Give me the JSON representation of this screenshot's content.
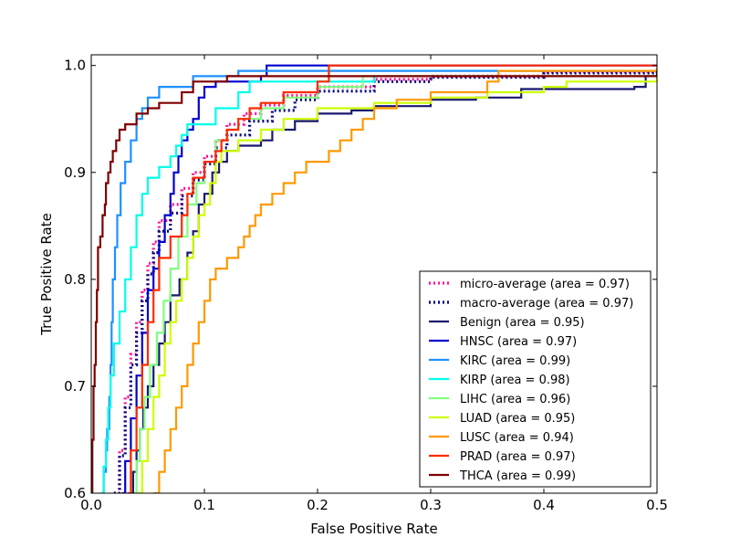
{
  "chart_data": {
    "type": "line",
    "title": "",
    "xlabel": "False Positive Rate",
    "ylabel": "True Positive Rate",
    "xlim": [
      0.0,
      0.5
    ],
    "ylim": [
      0.6,
      1.01
    ],
    "x_ticks": [
      0.0,
      0.1,
      0.2,
      0.3,
      0.4,
      0.5
    ],
    "x_tick_labels": [
      "0.0",
      "0.1",
      "0.2",
      "0.3",
      "0.4",
      "0.5"
    ],
    "y_ticks": [
      0.6,
      0.7,
      0.8,
      0.9,
      1.0
    ],
    "y_tick_labels": [
      "0.6",
      "0.7",
      "0.8",
      "0.9",
      "1.0"
    ],
    "legend_position": "lower-right",
    "series": [
      {
        "name": "micro-average",
        "label": "micro-average (area = 0.97)",
        "color": "#ff1493",
        "style": "dotted",
        "points": [
          [
            0.02,
            0.6
          ],
          [
            0.025,
            0.64
          ],
          [
            0.03,
            0.69
          ],
          [
            0.035,
            0.73
          ],
          [
            0.04,
            0.76
          ],
          [
            0.045,
            0.79
          ],
          [
            0.05,
            0.815
          ],
          [
            0.055,
            0.835
          ],
          [
            0.06,
            0.855
          ],
          [
            0.07,
            0.87
          ],
          [
            0.08,
            0.885
          ],
          [
            0.09,
            0.9
          ],
          [
            0.1,
            0.915
          ],
          [
            0.11,
            0.93
          ],
          [
            0.12,
            0.945
          ],
          [
            0.135,
            0.955
          ],
          [
            0.15,
            0.963
          ],
          [
            0.17,
            0.972
          ],
          [
            0.2,
            0.98
          ],
          [
            0.25,
            0.987
          ],
          [
            0.3,
            0.99
          ],
          [
            0.4,
            0.994
          ],
          [
            0.5,
            0.997
          ]
        ]
      },
      {
        "name": "macro-average",
        "label": "macro-average (area = 0.97)",
        "color": "#000080",
        "style": "dotted",
        "points": [
          [
            0.02,
            0.6
          ],
          [
            0.025,
            0.635
          ],
          [
            0.03,
            0.68
          ],
          [
            0.035,
            0.72
          ],
          [
            0.04,
            0.75
          ],
          [
            0.045,
            0.78
          ],
          [
            0.05,
            0.805
          ],
          [
            0.055,
            0.825
          ],
          [
            0.06,
            0.845
          ],
          [
            0.07,
            0.862
          ],
          [
            0.08,
            0.878
          ],
          [
            0.09,
            0.893
          ],
          [
            0.1,
            0.908
          ],
          [
            0.11,
            0.923
          ],
          [
            0.12,
            0.935
          ],
          [
            0.14,
            0.948
          ],
          [
            0.16,
            0.958
          ],
          [
            0.18,
            0.968
          ],
          [
            0.2,
            0.976
          ],
          [
            0.25,
            0.985
          ],
          [
            0.3,
            0.989
          ],
          [
            0.4,
            0.993
          ],
          [
            0.5,
            0.996
          ]
        ]
      },
      {
        "name": "Benign",
        "label": "Benign (area = 0.95)",
        "color": "#191970",
        "style": "solid",
        "points": [
          [
            0.035,
            0.6
          ],
          [
            0.037,
            0.62
          ],
          [
            0.04,
            0.64
          ],
          [
            0.043,
            0.66
          ],
          [
            0.046,
            0.68
          ],
          [
            0.05,
            0.7
          ],
          [
            0.055,
            0.72
          ],
          [
            0.06,
            0.74
          ],
          [
            0.065,
            0.76
          ],
          [
            0.07,
            0.785
          ],
          [
            0.078,
            0.8
          ],
          [
            0.085,
            0.825
          ],
          [
            0.09,
            0.845
          ],
          [
            0.095,
            0.87
          ],
          [
            0.1,
            0.88
          ],
          [
            0.107,
            0.9
          ],
          [
            0.113,
            0.91
          ],
          [
            0.12,
            0.92
          ],
          [
            0.13,
            0.925
          ],
          [
            0.15,
            0.93
          ],
          [
            0.16,
            0.94
          ],
          [
            0.18,
            0.948
          ],
          [
            0.2,
            0.955
          ],
          [
            0.23,
            0.958
          ],
          [
            0.25,
            0.962
          ],
          [
            0.3,
            0.968
          ],
          [
            0.34,
            0.97
          ],
          [
            0.38,
            0.978
          ],
          [
            0.42,
            0.978
          ],
          [
            0.48,
            0.98
          ],
          [
            0.49,
            0.99
          ],
          [
            0.5,
            0.99
          ]
        ]
      },
      {
        "name": "HNSC",
        "label": "HNSC (area = 0.97)",
        "color": "#0000cd",
        "style": "solid",
        "points": [
          [
            0.027,
            0.6
          ],
          [
            0.03,
            0.63
          ],
          [
            0.035,
            0.67
          ],
          [
            0.04,
            0.71
          ],
          [
            0.045,
            0.75
          ],
          [
            0.05,
            0.79
          ],
          [
            0.055,
            0.81
          ],
          [
            0.06,
            0.835
          ],
          [
            0.065,
            0.86
          ],
          [
            0.07,
            0.88
          ],
          [
            0.073,
            0.9
          ],
          [
            0.077,
            0.915
          ],
          [
            0.08,
            0.93
          ],
          [
            0.085,
            0.94
          ],
          [
            0.09,
            0.95
          ],
          [
            0.095,
            0.97
          ],
          [
            0.1,
            0.98
          ],
          [
            0.11,
            0.985
          ],
          [
            0.15,
            0.99
          ],
          [
            0.155,
            1.0
          ],
          [
            0.5,
            1.0
          ]
        ]
      },
      {
        "name": "KIRC",
        "label": "KIRC (area = 0.99)",
        "color": "#1e90ff",
        "style": "solid",
        "points": [
          [
            0.009,
            0.6
          ],
          [
            0.011,
            0.62
          ],
          [
            0.013,
            0.64
          ],
          [
            0.014,
            0.66
          ],
          [
            0.016,
            0.69
          ],
          [
            0.017,
            0.72
          ],
          [
            0.018,
            0.76
          ],
          [
            0.019,
            0.8
          ],
          [
            0.021,
            0.83
          ],
          [
            0.023,
            0.86
          ],
          [
            0.026,
            0.89
          ],
          [
            0.03,
            0.91
          ],
          [
            0.035,
            0.93
          ],
          [
            0.04,
            0.95
          ],
          [
            0.045,
            0.96
          ],
          [
            0.05,
            0.97
          ],
          [
            0.06,
            0.98
          ],
          [
            0.09,
            0.99
          ],
          [
            0.13,
            0.995
          ],
          [
            0.5,
            0.998
          ]
        ]
      },
      {
        "name": "KIRP",
        "label": "KIRP (area = 0.98)",
        "color": "#00ffea",
        "style": "solid",
        "points": [
          [
            0.009,
            0.6
          ],
          [
            0.011,
            0.625
          ],
          [
            0.013,
            0.65
          ],
          [
            0.015,
            0.68
          ],
          [
            0.017,
            0.71
          ],
          [
            0.02,
            0.74
          ],
          [
            0.025,
            0.77
          ],
          [
            0.03,
            0.8
          ],
          [
            0.035,
            0.83
          ],
          [
            0.04,
            0.86
          ],
          [
            0.045,
            0.88
          ],
          [
            0.05,
            0.895
          ],
          [
            0.06,
            0.905
          ],
          [
            0.07,
            0.915
          ],
          [
            0.075,
            0.925
          ],
          [
            0.08,
            0.935
          ],
          [
            0.085,
            0.945
          ],
          [
            0.1,
            0.945
          ],
          [
            0.11,
            0.96
          ],
          [
            0.13,
            0.975
          ],
          [
            0.14,
            0.985
          ],
          [
            0.25,
            0.99
          ],
          [
            0.5,
            0.995
          ]
        ]
      },
      {
        "name": "LIHC",
        "label": "LIHC (area = 0.96)",
        "color": "#7fff7f",
        "style": "solid",
        "points": [
          [
            0.038,
            0.6
          ],
          [
            0.04,
            0.63
          ],
          [
            0.043,
            0.66
          ],
          [
            0.047,
            0.69
          ],
          [
            0.052,
            0.72
          ],
          [
            0.058,
            0.75
          ],
          [
            0.064,
            0.78
          ],
          [
            0.07,
            0.81
          ],
          [
            0.077,
            0.84
          ],
          [
            0.085,
            0.87
          ],
          [
            0.093,
            0.89
          ],
          [
            0.1,
            0.91
          ],
          [
            0.11,
            0.93
          ],
          [
            0.12,
            0.94
          ],
          [
            0.13,
            0.95
          ],
          [
            0.15,
            0.96
          ],
          [
            0.17,
            0.97
          ],
          [
            0.2,
            0.98
          ],
          [
            0.24,
            0.99
          ],
          [
            0.5,
            0.998
          ]
        ]
      },
      {
        "name": "LUAD",
        "label": "LUAD (area = 0.95)",
        "color": "#ccff00",
        "style": "solid",
        "points": [
          [
            0.04,
            0.6
          ],
          [
            0.045,
            0.63
          ],
          [
            0.05,
            0.66
          ],
          [
            0.055,
            0.69
          ],
          [
            0.06,
            0.71
          ],
          [
            0.065,
            0.74
          ],
          [
            0.07,
            0.76
          ],
          [
            0.075,
            0.78
          ],
          [
            0.08,
            0.8
          ],
          [
            0.085,
            0.82
          ],
          [
            0.09,
            0.84
          ],
          [
            0.095,
            0.86
          ],
          [
            0.1,
            0.87
          ],
          [
            0.105,
            0.89
          ],
          [
            0.11,
            0.91
          ],
          [
            0.115,
            0.92
          ],
          [
            0.13,
            0.93
          ],
          [
            0.15,
            0.94
          ],
          [
            0.17,
            0.95
          ],
          [
            0.2,
            0.96
          ],
          [
            0.25,
            0.965
          ],
          [
            0.3,
            0.97
          ],
          [
            0.35,
            0.975
          ],
          [
            0.4,
            0.98
          ],
          [
            0.42,
            0.985
          ],
          [
            0.5,
            0.99
          ]
        ]
      },
      {
        "name": "LUSC",
        "label": "LUSC (area = 0.94)",
        "color": "#ff9900",
        "style": "solid",
        "points": [
          [
            0.055,
            0.6
          ],
          [
            0.06,
            0.62
          ],
          [
            0.065,
            0.64
          ],
          [
            0.07,
            0.66
          ],
          [
            0.075,
            0.68
          ],
          [
            0.08,
            0.7
          ],
          [
            0.085,
            0.72
          ],
          [
            0.09,
            0.74
          ],
          [
            0.095,
            0.76
          ],
          [
            0.1,
            0.78
          ],
          [
            0.105,
            0.8
          ],
          [
            0.11,
            0.81
          ],
          [
            0.12,
            0.82
          ],
          [
            0.13,
            0.83
          ],
          [
            0.135,
            0.84
          ],
          [
            0.14,
            0.85
          ],
          [
            0.145,
            0.86
          ],
          [
            0.15,
            0.87
          ],
          [
            0.16,
            0.88
          ],
          [
            0.17,
            0.89
          ],
          [
            0.18,
            0.9
          ],
          [
            0.19,
            0.91
          ],
          [
            0.21,
            0.92
          ],
          [
            0.22,
            0.93
          ],
          [
            0.23,
            0.94
          ],
          [
            0.24,
            0.95
          ],
          [
            0.25,
            0.96
          ],
          [
            0.27,
            0.968
          ],
          [
            0.3,
            0.975
          ],
          [
            0.35,
            0.985
          ],
          [
            0.36,
            0.995
          ],
          [
            0.5,
            0.998
          ]
        ]
      },
      {
        "name": "PRAD",
        "label": "PRAD (area = 0.97)",
        "color": "#ff2a00",
        "style": "solid",
        "points": [
          [
            0.032,
            0.6
          ],
          [
            0.035,
            0.64
          ],
          [
            0.04,
            0.68
          ],
          [
            0.045,
            0.72
          ],
          [
            0.05,
            0.76
          ],
          [
            0.055,
            0.79
          ],
          [
            0.06,
            0.82
          ],
          [
            0.07,
            0.84
          ],
          [
            0.08,
            0.86
          ],
          [
            0.085,
            0.88
          ],
          [
            0.09,
            0.895
          ],
          [
            0.1,
            0.91
          ],
          [
            0.11,
            0.92
          ],
          [
            0.115,
            0.93
          ],
          [
            0.12,
            0.94
          ],
          [
            0.13,
            0.95
          ],
          [
            0.14,
            0.96
          ],
          [
            0.15,
            0.965
          ],
          [
            0.17,
            0.975
          ],
          [
            0.2,
            0.985
          ],
          [
            0.21,
            1.0
          ],
          [
            0.5,
            1.0
          ]
        ]
      },
      {
        "name": "THCA",
        "label": "THCA (area = 0.99)",
        "color": "#800000",
        "style": "solid",
        "points": [
          [
            0.0,
            0.6
          ],
          [
            0.001,
            0.65
          ],
          [
            0.002,
            0.7
          ],
          [
            0.003,
            0.72
          ],
          [
            0.004,
            0.76
          ],
          [
            0.005,
            0.79
          ],
          [
            0.006,
            0.83
          ],
          [
            0.008,
            0.84
          ],
          [
            0.01,
            0.86
          ],
          [
            0.012,
            0.87
          ],
          [
            0.013,
            0.89
          ],
          [
            0.015,
            0.9
          ],
          [
            0.017,
            0.91
          ],
          [
            0.019,
            0.92
          ],
          [
            0.022,
            0.93
          ],
          [
            0.025,
            0.94
          ],
          [
            0.03,
            0.945
          ],
          [
            0.04,
            0.955
          ],
          [
            0.05,
            0.96
          ],
          [
            0.06,
            0.965
          ],
          [
            0.08,
            0.975
          ],
          [
            0.09,
            0.985
          ],
          [
            0.12,
            0.99
          ],
          [
            0.14,
            0.99
          ],
          [
            0.2,
            0.99
          ],
          [
            0.5,
            0.995
          ]
        ]
      }
    ]
  }
}
